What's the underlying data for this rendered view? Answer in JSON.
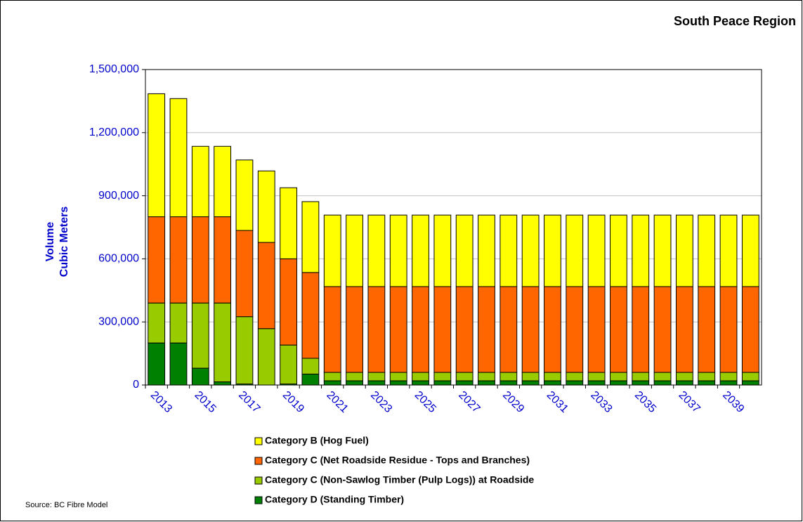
{
  "chart_data": {
    "type": "stacked_bar",
    "title": "South Peace Region",
    "y_label": [
      "Volume",
      "Cubic Meters"
    ],
    "source": "Source: BC Fibre Model",
    "categories": [
      "2013",
      null,
      "2015",
      null,
      "2017",
      null,
      "2019",
      null,
      "2021",
      null,
      "2023",
      null,
      "2025",
      null,
      "2027",
      null,
      "2029",
      null,
      "2031",
      null,
      "2033",
      null,
      "2035",
      null,
      "2037",
      null,
      "2039",
      null
    ],
    "series": [
      {
        "name": "Category D (Standing Timber)",
        "color": "#008000",
        "values": [
          200000,
          200000,
          80000,
          15000,
          5000,
          0,
          5000,
          52000,
          20000,
          20000,
          20000,
          20000,
          20000,
          20000,
          20000,
          20000,
          20000,
          20000,
          20000,
          20000,
          20000,
          20000,
          20000,
          20000,
          20000,
          20000,
          20000,
          20000
        ]
      },
      {
        "name": "Category C (Non-Sawlog Timber (Pulp Logs)) at Roadside",
        "color": "#99cc00",
        "values": [
          190000,
          190000,
          310000,
          375000,
          320000,
          268000,
          185000,
          75000,
          40000,
          40000,
          40000,
          40000,
          40000,
          40000,
          40000,
          40000,
          40000,
          40000,
          40000,
          40000,
          40000,
          40000,
          40000,
          40000,
          40000,
          40000,
          40000,
          40000
        ]
      },
      {
        "name": "Category C (Net Roadside Residue - Tops and Branches)",
        "color": "#ff6600",
        "values": [
          410000,
          410000,
          410000,
          410000,
          410000,
          410000,
          410000,
          408000,
          408000,
          408000,
          408000,
          408000,
          408000,
          408000,
          408000,
          408000,
          408000,
          408000,
          408000,
          408000,
          408000,
          408000,
          408000,
          408000,
          408000,
          408000,
          408000,
          408000
        ]
      },
      {
        "name": "Category B (Hog Fuel)",
        "color": "#ffff00",
        "values": [
          585000,
          562000,
          335000,
          335000,
          335000,
          340000,
          338000,
          337000,
          340000,
          340000,
          340000,
          340000,
          340000,
          340000,
          340000,
          340000,
          340000,
          340000,
          340000,
          340000,
          340000,
          340000,
          340000,
          340000,
          340000,
          340000,
          340000,
          340000
        ]
      }
    ],
    "ylim": [
      0,
      1500000
    ],
    "yticks": [
      0,
      {
        "value": 300000,
        "label": "300,000"
      },
      {
        "value": 600000,
        "label": "600,000"
      },
      {
        "value": 900000,
        "label": "900,000"
      },
      {
        "value": 1200000,
        "label": "1,200,000"
      },
      {
        "value": 1500000,
        "label": "1,500,000"
      }
    ],
    "grid": true
  }
}
